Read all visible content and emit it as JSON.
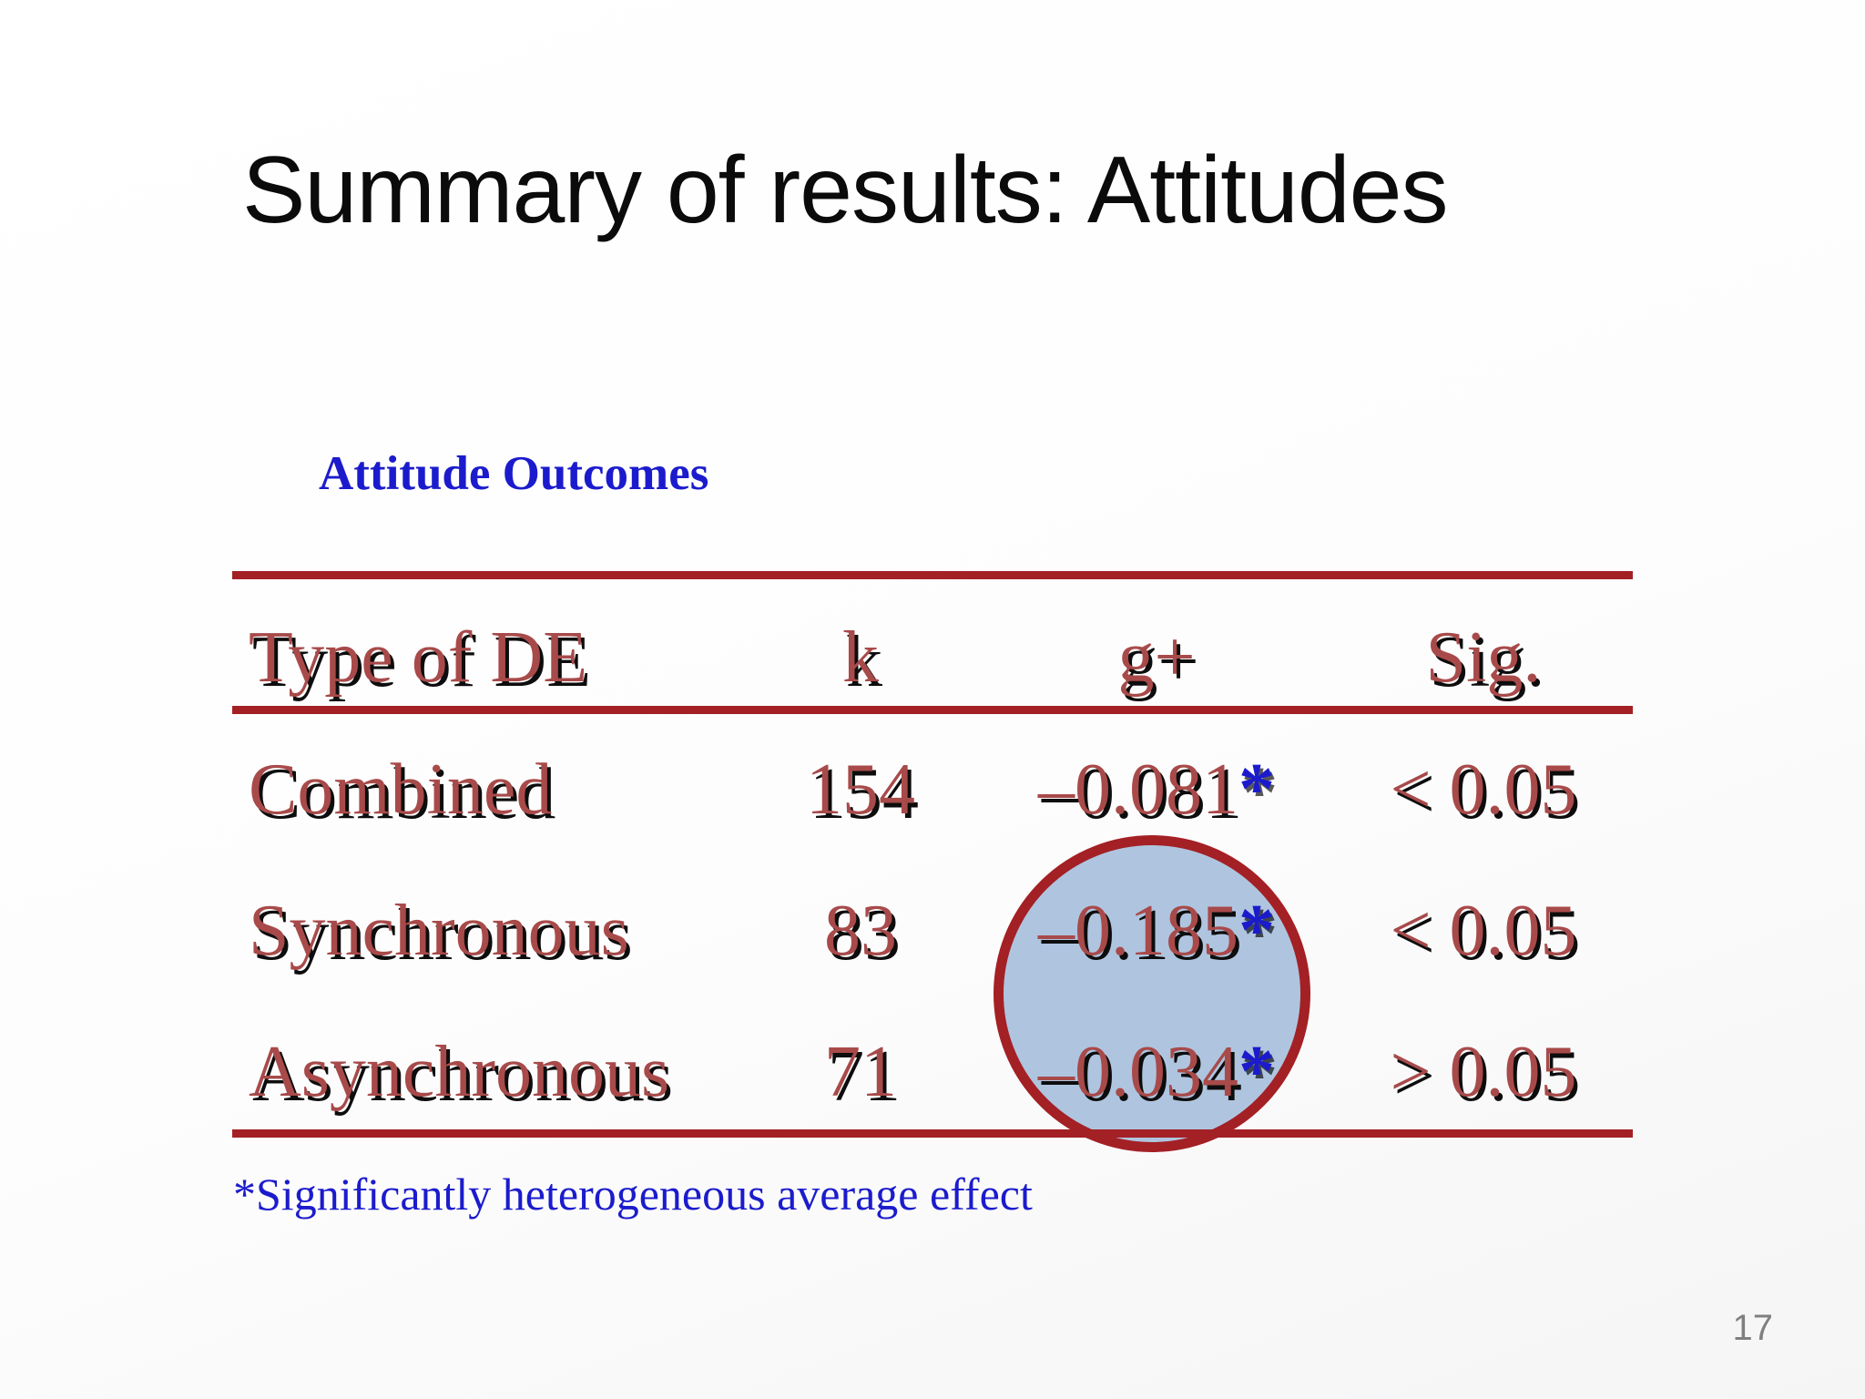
{
  "slide": {
    "title": "Summary of results: Attitudes",
    "footnote": "*Significantly heterogeneous average effect",
    "page_number": "17"
  },
  "table": {
    "label": "Attitude Outcomes",
    "headers": [
      "Type of DE",
      "k",
      "g+",
      "Sig."
    ],
    "rows": [
      {
        "type_of_de": "Combined",
        "k": "154",
        "g_plus": "–0.081",
        "asterisk": "*",
        "sig": "< 0.05"
      },
      {
        "type_of_de": "Synchronous",
        "k": "83",
        "g_plus": "–0.185",
        "asterisk": "*",
        "sig": "< 0.05"
      },
      {
        "type_of_de": "Asynchronous",
        "k": "71",
        "g_plus": "–0.034",
        "asterisk": "*",
        "sig": "> 0.05"
      }
    ]
  },
  "annotations": {
    "highlight_circle": "circle highlighting g+ values of Synchronous and Asynchronous rows"
  },
  "colors": {
    "table_text_red": "#a84a4a",
    "table_rule_red": "#a32025",
    "accent_blue": "#1b1bcd",
    "circle_fill": "#a8c0dc",
    "circle_border": "#a32025",
    "title_black": "#0b0b0b",
    "page_number_gray": "#7f7f7f"
  }
}
